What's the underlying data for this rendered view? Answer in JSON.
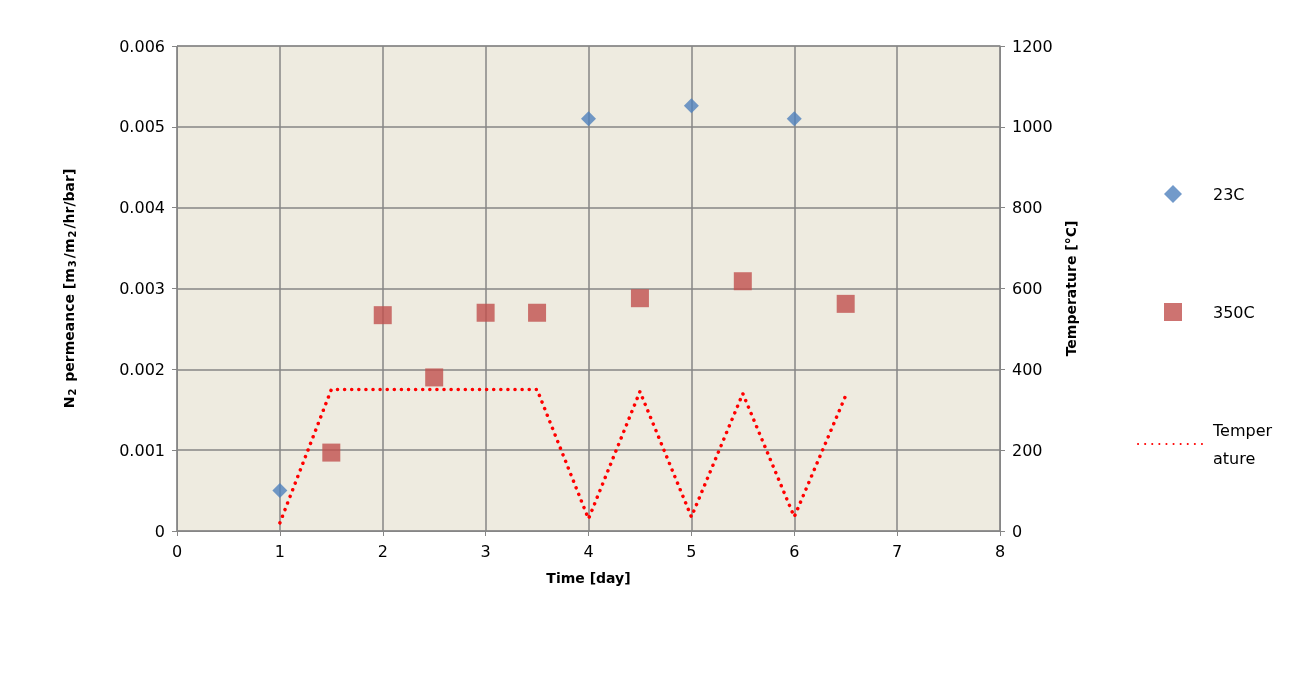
{
  "chart_data": {
    "type": "scatter",
    "xlabel": "Time [day]",
    "ylabel": "N$_{2}$ permeance [m$_{3}$/m$_{2}$/hr/bar]",
    "y2label": "Temperature [°C]",
    "xlim": [
      0,
      8
    ],
    "xticks": [
      0,
      1,
      2,
      3,
      4,
      5,
      6,
      7,
      8
    ],
    "ylim": [
      0,
      0.006
    ],
    "yticks": [
      0,
      0.001,
      0.002,
      0.003,
      0.004,
      0.005,
      0.006
    ],
    "y2lim": [
      0,
      1200
    ],
    "y2ticks": [
      0,
      200,
      400,
      600,
      800,
      1000,
      1200
    ],
    "grid": true,
    "legend": "right",
    "series": [
      {
        "name": "23C",
        "marker": "diamond",
        "color": "#4f81bd",
        "x": [
          1,
          4,
          5,
          6
        ],
        "values": [
          0.0005,
          0.0051,
          0.00526,
          0.0051
        ]
      },
      {
        "name": "350C",
        "marker": "square",
        "color": "#c0504d",
        "x": [
          1.5,
          2,
          2.5,
          3,
          3.5,
          4.5,
          5.5,
          6.5
        ],
        "values": [
          0.00097,
          0.00267,
          0.0019,
          0.0027,
          0.0027,
          0.00288,
          0.00309,
          0.00281
        ]
      },
      {
        "name": "Temperature",
        "type": "line",
        "axis": "y2",
        "marker": "none",
        "line_style": "dotted",
        "color": "#ff0000",
        "x": [
          1,
          1.5,
          3.5,
          4,
          4.5,
          5,
          5.5,
          6,
          6.5
        ],
        "values": [
          20,
          350,
          350,
          30,
          345,
          35,
          340,
          35,
          335
        ]
      }
    ]
  }
}
